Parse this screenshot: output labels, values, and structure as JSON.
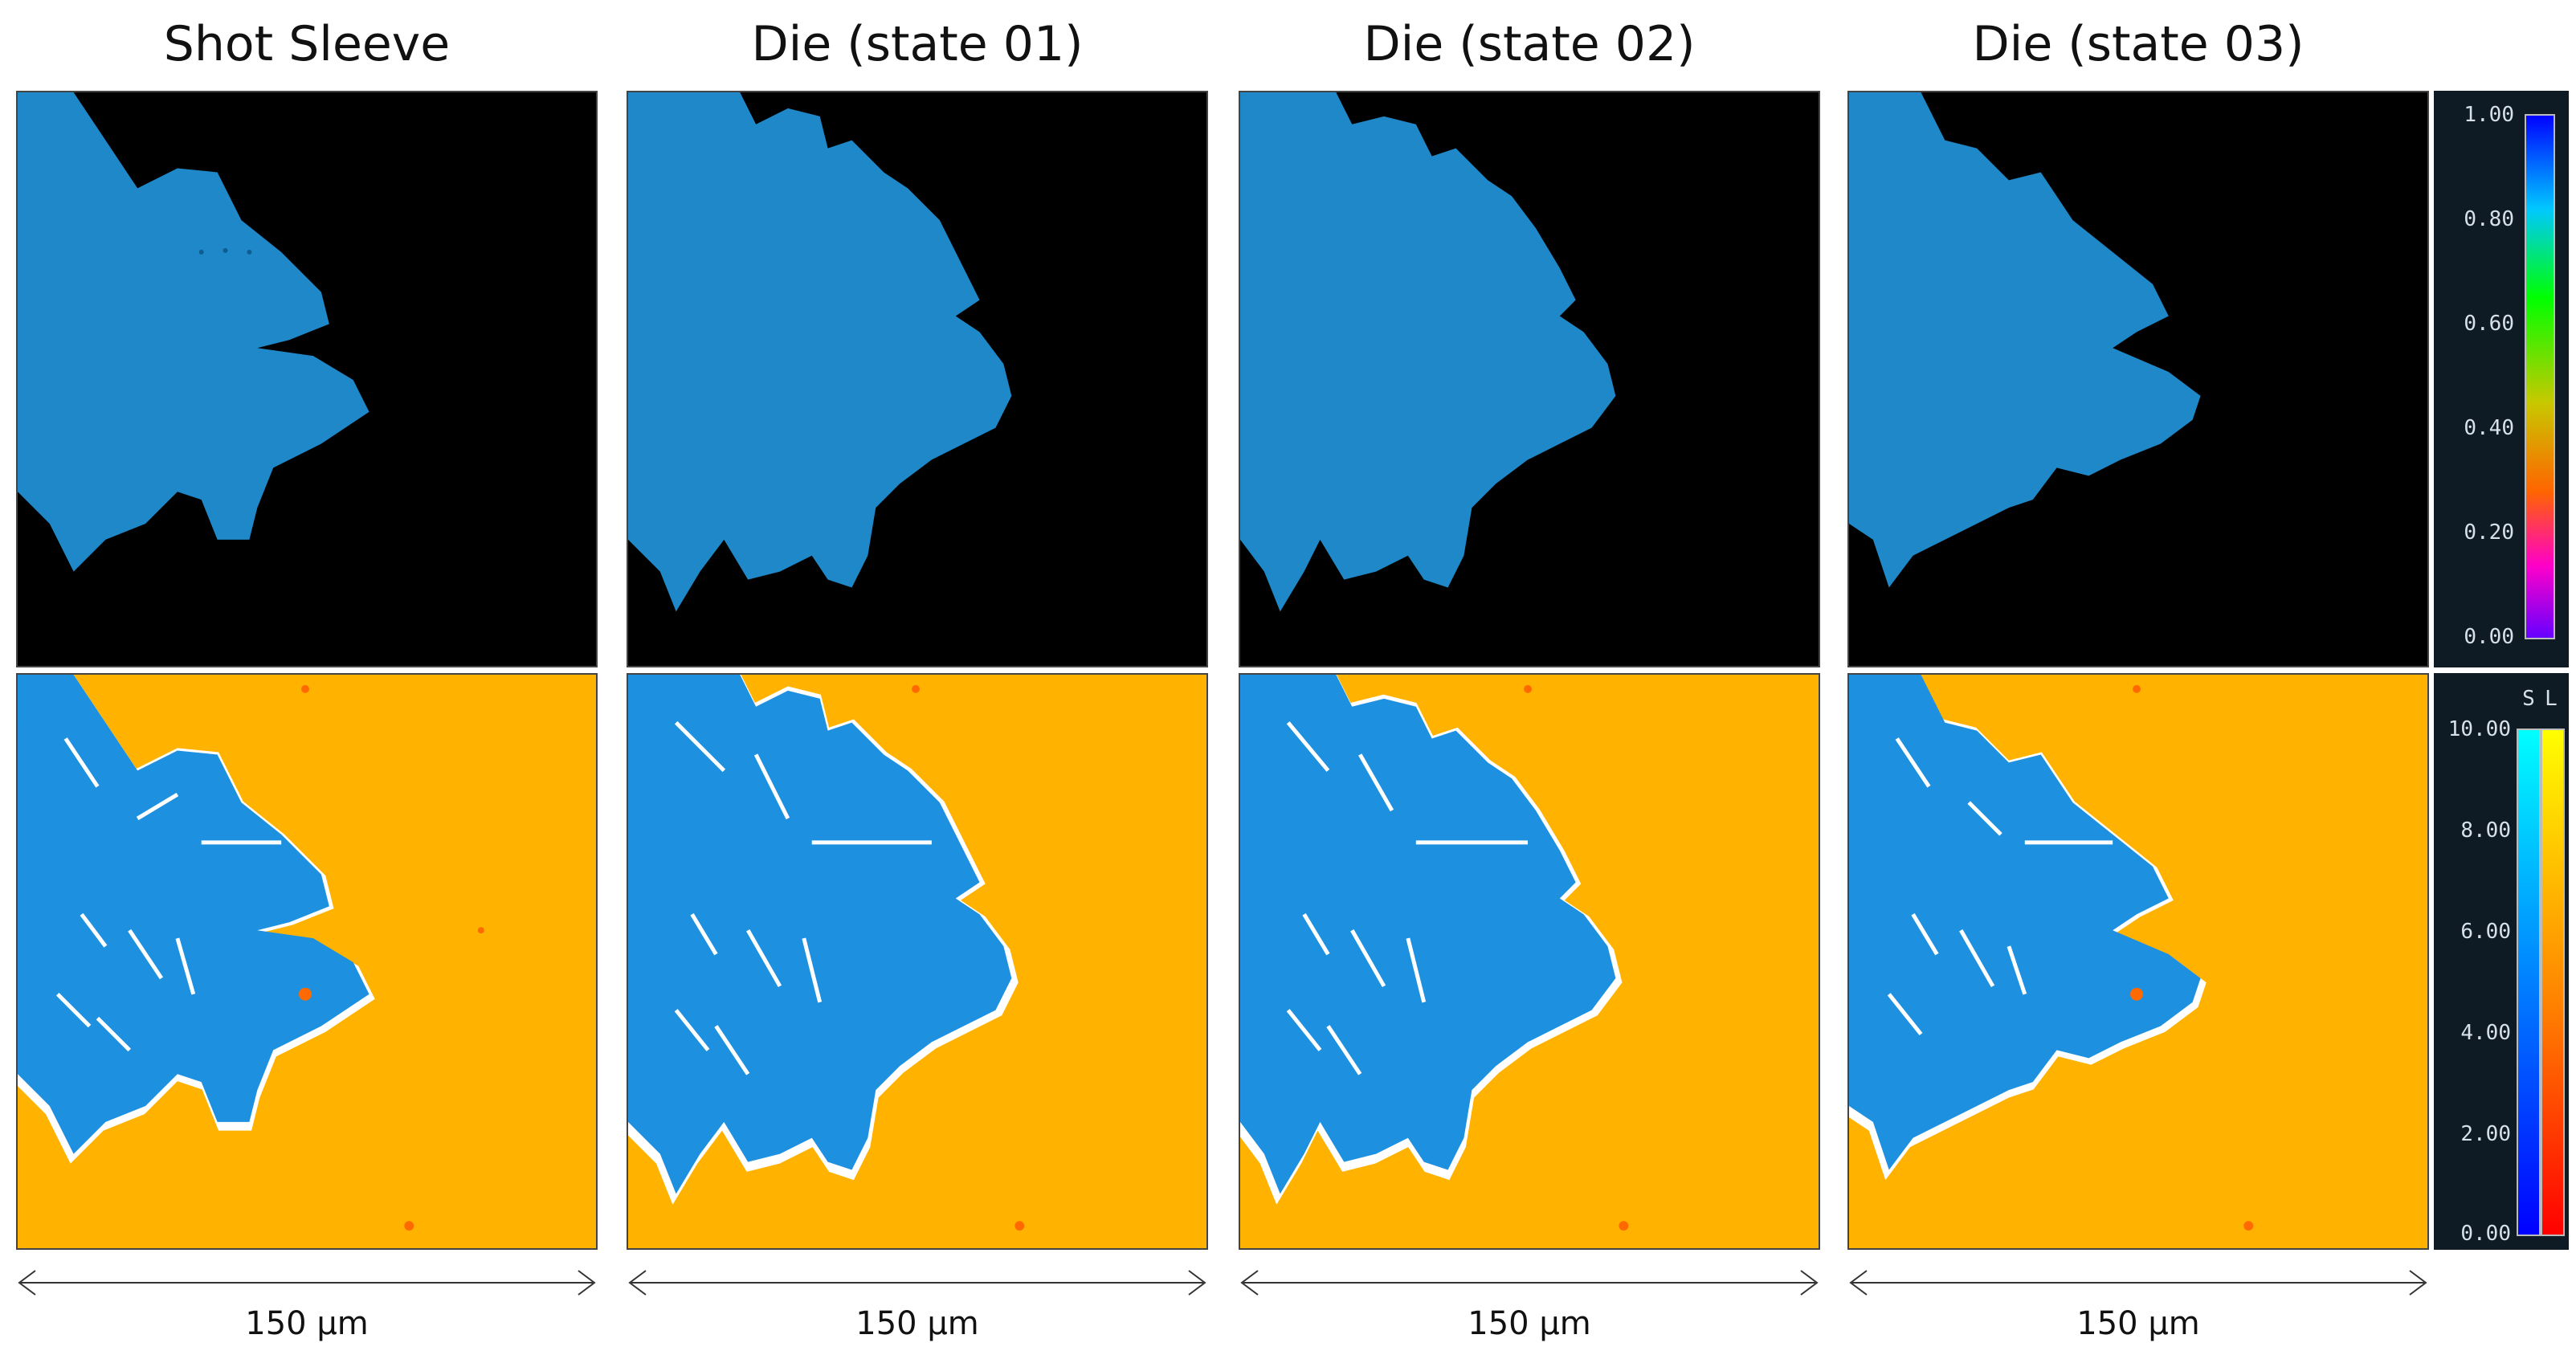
{
  "columns": [
    {
      "title": "Shot Sleeve",
      "scale": "150 µm"
    },
    {
      "title": "Die (state 01)",
      "scale": "150 µm"
    },
    {
      "title": "Die (state 02)",
      "scale": "150 µm"
    },
    {
      "title": "Die (state 03)",
      "scale": "150 µm"
    }
  ],
  "legend_top": {
    "ticks": [
      "1.00",
      "0.80",
      "0.60",
      "0.40",
      "0.20",
      "0.00"
    ],
    "colors": [
      "#0000ff",
      "#00c8ff",
      "#00ff00",
      "#c8c800",
      "#ff6400",
      "#ff00c8",
      "#6400ff"
    ]
  },
  "legend_bottom": {
    "header_s": "S",
    "header_l": "L",
    "ticks": [
      "10.00",
      "8.00",
      "6.00",
      "4.00",
      "2.00",
      "0.00"
    ],
    "colors_s": [
      "#00ffff",
      "#0080ff",
      "#0000ff"
    ],
    "colors_l": [
      "#ffff00",
      "#ff8000",
      "#ff0000"
    ]
  },
  "colors": {
    "solid_phase": "#1e88c8",
    "background_top": "#000000",
    "liquid": "#ffb300",
    "boundary": "#ffffff"
  }
}
